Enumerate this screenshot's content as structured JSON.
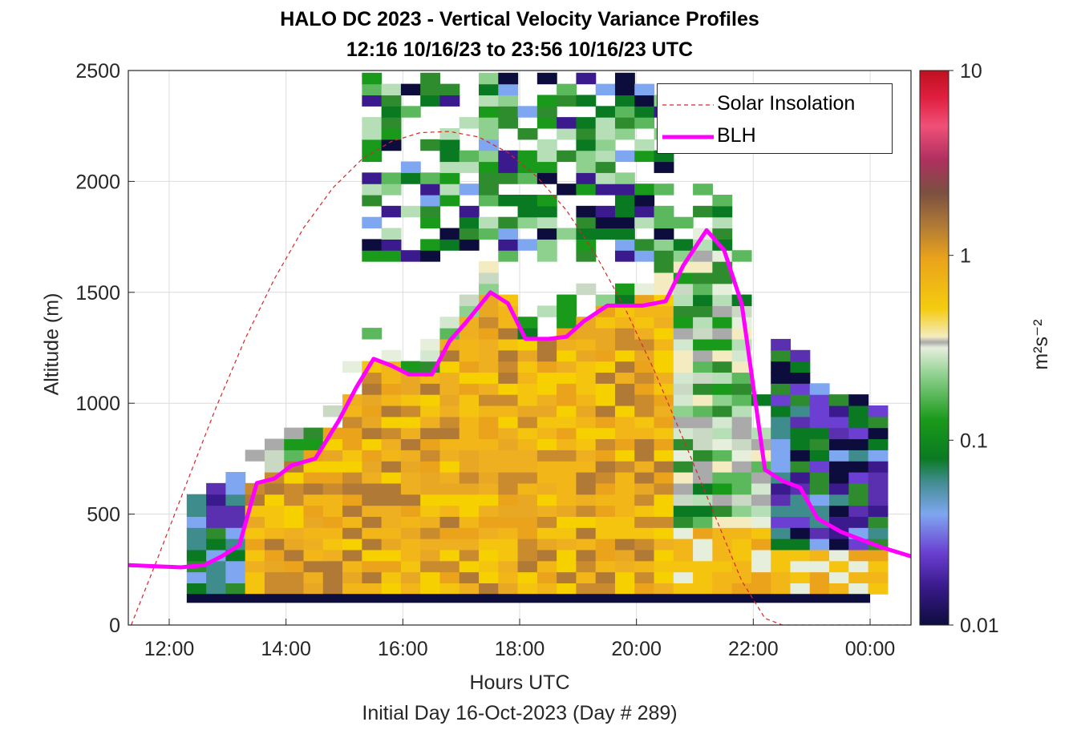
{
  "chart_data": {
    "type": "heatmap",
    "title": "HALO DC 2023 - Vertical Velocity Variance Profiles",
    "subtitle": "12:16 10/16/23 to 23:56 10/16/23  UTC",
    "xlabel": "Hours UTC",
    "xsublabel": "Initial Day 16-Oct-2023 (Day # 289)",
    "ylabel": "Altitude (m)",
    "colorbar_label": "m²s⁻²",
    "colorbar_scale": "log",
    "colorbar_range": [
      0.01,
      10
    ],
    "colorbar_ticks": [
      {
        "value": 0.01,
        "label": "0.01"
      },
      {
        "value": 0.1,
        "label": "0.1"
      },
      {
        "value": 1,
        "label": "1"
      },
      {
        "value": 10,
        "label": "10"
      }
    ],
    "xlim": [
      11.3,
      24.7
    ],
    "ylim": [
      0,
      2500
    ],
    "x_ticks": [
      {
        "value": 12,
        "label": "12:00"
      },
      {
        "value": 14,
        "label": "14:00"
      },
      {
        "value": 16,
        "label": "16:00"
      },
      {
        "value": 18,
        "label": "18:00"
      },
      {
        "value": 20,
        "label": "20:00"
      },
      {
        "value": 22,
        "label": "22:00"
      },
      {
        "value": 24,
        "label": "00:00"
      }
    ],
    "y_ticks": [
      {
        "value": 0,
        "label": "0"
      },
      {
        "value": 500,
        "label": "500"
      },
      {
        "value": 1000,
        "label": "1000"
      },
      {
        "value": 1500,
        "label": "1500"
      },
      {
        "value": 2000,
        "label": "2000"
      },
      {
        "value": 2500,
        "label": "2500"
      }
    ],
    "grid": true,
    "legend_position": "top-right",
    "series": [
      {
        "name": "Solar Insolation",
        "style": "dashed",
        "color": "#d62728",
        "x": [
          11.35,
          11.8,
          12.3,
          12.8,
          13.3,
          13.8,
          14.3,
          14.8,
          15.3,
          15.8,
          16.3,
          16.8,
          17.3,
          17.8,
          18.3,
          18.8,
          19.3,
          19.8,
          20.3,
          20.8,
          21.3,
          21.8,
          22.2,
          22.5,
          23.0,
          24.0,
          24.7
        ],
        "y": [
          0,
          300,
          640,
          980,
          1290,
          1560,
          1790,
          1970,
          2100,
          2180,
          2220,
          2225,
          2200,
          2130,
          2020,
          1870,
          1670,
          1430,
          1150,
          840,
          520,
          200,
          30,
          0,
          0,
          0,
          0
        ]
      },
      {
        "name": "BLH",
        "color": "#ff00ff",
        "x": [
          11.3,
          12.2,
          12.6,
          12.9,
          13.2,
          13.5,
          13.8,
          14.1,
          14.5,
          14.9,
          15.2,
          15.5,
          15.8,
          16.1,
          16.5,
          16.8,
          17.1,
          17.5,
          17.8,
          18.1,
          18.5,
          18.8,
          19.1,
          19.5,
          19.8,
          20.1,
          20.5,
          20.8,
          21.2,
          21.5,
          21.8,
          22.2,
          22.5,
          22.8,
          23.1,
          23.5,
          23.9,
          24.2,
          24.7
        ],
        "y": [
          270,
          260,
          270,
          310,
          360,
          640,
          660,
          720,
          750,
          920,
          1070,
          1200,
          1170,
          1130,
          1130,
          1280,
          1370,
          1500,
          1450,
          1290,
          1290,
          1300,
          1370,
          1440,
          1440,
          1440,
          1460,
          1620,
          1780,
          1690,
          1450,
          700,
          650,
          620,
          480,
          420,
          380,
          350,
          310
        ]
      }
    ],
    "heatmap_x_range": [
      12.3,
      24.0
    ],
    "heatmap_bin_minutes": 20,
    "heatmap_altitude_bin_m": 50,
    "heatmap_ground_band_m": [
      100,
      140
    ]
  }
}
